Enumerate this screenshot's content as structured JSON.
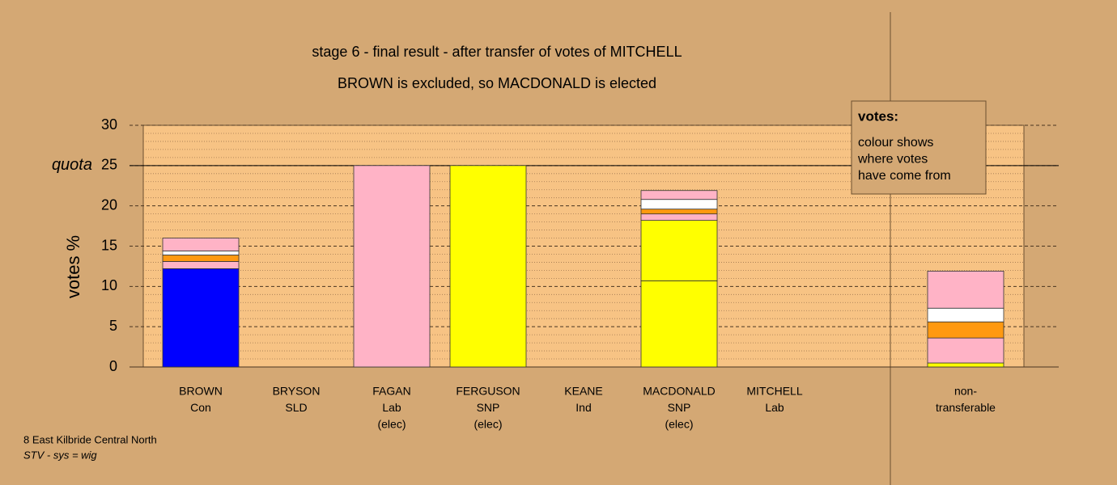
{
  "chart_data": {
    "type": "stacked-bar",
    "title": "stage 6 - final result - after transfer of votes of MITCHELL",
    "subtitle": "BROWN is excluded, so MACDONALD is elected",
    "y_label": "votes %",
    "ylim": [
      0,
      30
    ],
    "yticks": [
      0,
      5,
      10,
      15,
      20,
      25,
      30
    ],
    "minor_yticks": [
      1,
      2,
      3,
      4,
      6,
      7,
      8,
      9,
      11,
      12,
      13,
      14,
      16,
      17,
      18,
      19,
      21,
      22,
      23,
      24,
      26,
      27,
      28,
      29
    ],
    "quota": {
      "value": 25,
      "label": "quota"
    },
    "grid": true,
    "legend": {
      "title": "votes:",
      "lines": [
        "colour shows",
        "where votes",
        "have come from"
      ]
    },
    "categories": [
      [
        "BROWN",
        "Con"
      ],
      [
        "BRYSON",
        "SLD"
      ],
      [
        "FAGAN",
        "Lab",
        "(elec)"
      ],
      [
        "FERGUSON",
        "SNP",
        "(elec)"
      ],
      [
        "KEANE",
        "Ind"
      ],
      [
        "MACDONALD",
        "SNP",
        "(elec)"
      ],
      [
        "MITCHELL",
        "Lab"
      ],
      [
        "non-",
        "transferable"
      ]
    ],
    "bars": [
      {
        "segments": [
          {
            "value": 12.2,
            "color": "#0000ff"
          },
          {
            "value": 0.9,
            "color": "#ffb3c6"
          },
          {
            "value": 0.8,
            "color": "#ff9910"
          },
          {
            "value": 0.5,
            "color": "#ffffff"
          },
          {
            "value": 1.6,
            "color": "#ffb3c6"
          }
        ]
      },
      {
        "segments": []
      },
      {
        "segments": [
          {
            "value": 25,
            "color": "#ffb3c6"
          }
        ]
      },
      {
        "segments": [
          {
            "value": 25,
            "color": "#ffff00"
          }
        ]
      },
      {
        "segments": []
      },
      {
        "segments": [
          {
            "value": 10.7,
            "color": "#ffff00"
          },
          {
            "value": 7.5,
            "color": "#ffff00"
          },
          {
            "value": 0.8,
            "color": "#ffb3c6"
          },
          {
            "value": 0.6,
            "color": "#ff9910"
          },
          {
            "value": 1.2,
            "color": "#ffffff"
          },
          {
            "value": 1.1,
            "color": "#ffb3c6"
          }
        ]
      },
      {
        "segments": []
      },
      {
        "segments": [
          {
            "value": 0.5,
            "color": "#ffff00"
          },
          {
            "value": 3.1,
            "color": "#ffb3c6"
          },
          {
            "value": 2.0,
            "color": "#ff9910"
          },
          {
            "value": 1.7,
            "color": "#ffffff"
          },
          {
            "value": 4.6,
            "color": "#ffb3c6"
          }
        ]
      }
    ],
    "footer": [
      "8 East Kilbride Central North",
      "STV - sys = wig"
    ]
  }
}
